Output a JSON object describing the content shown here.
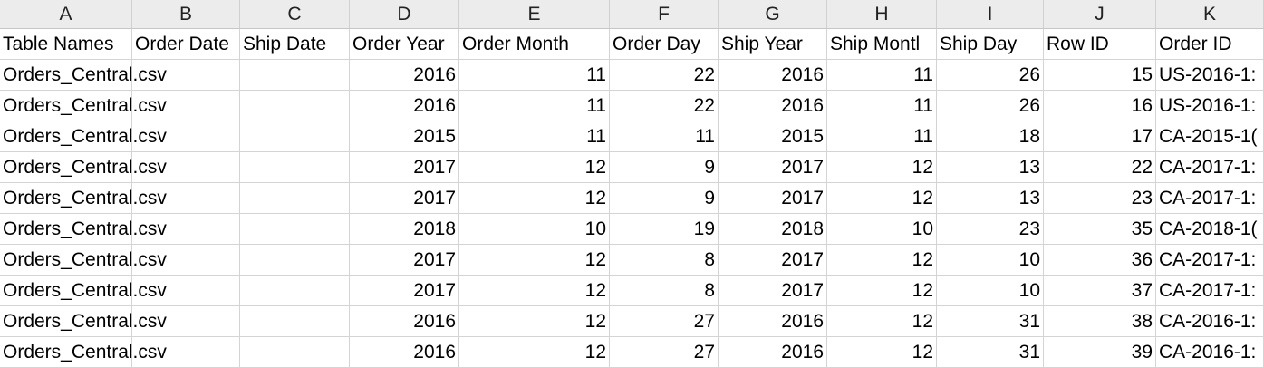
{
  "columns": [
    "A",
    "B",
    "C",
    "D",
    "E",
    "F",
    "G",
    "H",
    "I",
    "J",
    "K"
  ],
  "headers": [
    "Table Names",
    "Order Date",
    "Ship Date",
    "Order Year",
    "Order Month",
    "Order Day",
    "Ship Year",
    "Ship Montl",
    "Ship Day",
    "Row ID",
    "Order ID"
  ],
  "rows": [
    [
      "Orders_Central.csv",
      "",
      "",
      "2016",
      "11",
      "22",
      "2016",
      "11",
      "26",
      "15",
      "US-2016-1:"
    ],
    [
      "Orders_Central.csv",
      "",
      "",
      "2016",
      "11",
      "22",
      "2016",
      "11",
      "26",
      "16",
      "US-2016-1:"
    ],
    [
      "Orders_Central.csv",
      "",
      "",
      "2015",
      "11",
      "11",
      "2015",
      "11",
      "18",
      "17",
      "CA-2015-1("
    ],
    [
      "Orders_Central.csv",
      "",
      "",
      "2017",
      "12",
      "9",
      "2017",
      "12",
      "13",
      "22",
      "CA-2017-1:"
    ],
    [
      "Orders_Central.csv",
      "",
      "",
      "2017",
      "12",
      "9",
      "2017",
      "12",
      "13",
      "23",
      "CA-2017-1:"
    ],
    [
      "Orders_Central.csv",
      "",
      "",
      "2018",
      "10",
      "19",
      "2018",
      "10",
      "23",
      "35",
      "CA-2018-1("
    ],
    [
      "Orders_Central.csv",
      "",
      "",
      "2017",
      "12",
      "8",
      "2017",
      "12",
      "10",
      "36",
      "CA-2017-1:"
    ],
    [
      "Orders_Central.csv",
      "",
      "",
      "2017",
      "12",
      "8",
      "2017",
      "12",
      "10",
      "37",
      "CA-2017-1:"
    ],
    [
      "Orders_Central.csv",
      "",
      "",
      "2016",
      "12",
      "27",
      "2016",
      "12",
      "31",
      "38",
      "CA-2016-1:"
    ],
    [
      "Orders_Central.csv",
      "",
      "",
      "2016",
      "12",
      "27",
      "2016",
      "12",
      "31",
      "39",
      "CA-2016-1:"
    ]
  ],
  "colors": {
    "header_bg": "#ececec",
    "gridline": "#d4d4d4"
  }
}
